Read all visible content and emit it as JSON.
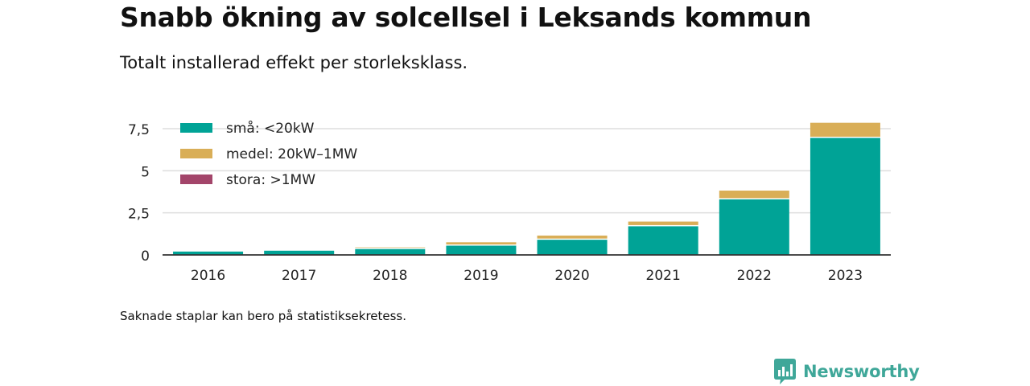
{
  "header": {
    "title": "Snabb ökning av solcellsel i Leksands kommun",
    "subtitle": "Totalt installerad effekt per storleksklass."
  },
  "footer": {
    "note": "Saknade staplar kan bero på statistiksekretess.",
    "brand": "Newsworthy"
  },
  "colors": {
    "small": "#00a396",
    "medium": "#d9ae57",
    "large": "#a3456a",
    "grid": "#dddddd",
    "axis": "#333333",
    "brand": "#3fa799"
  },
  "brand_icon": "newsworthy-bar-chart-icon",
  "chart_data": {
    "type": "bar",
    "stacked": true,
    "categories": [
      "2016",
      "2017",
      "2018",
      "2019",
      "2020",
      "2021",
      "2022",
      "2023"
    ],
    "series": [
      {
        "name": "små: <20kW",
        "color": "#00a396",
        "values": [
          0.2,
          0.25,
          0.35,
          0.55,
          0.9,
          1.7,
          3.3,
          6.95
        ]
      },
      {
        "name": "medel: 20kW–1MW",
        "color": "#d9ae57",
        "values": [
          0.0,
          0.0,
          0.1,
          0.2,
          0.25,
          0.28,
          0.52,
          0.9
        ]
      },
      {
        "name": "stora: >1MW",
        "color": "#a3456a",
        "values": [
          0,
          0,
          0,
          0,
          0,
          0,
          0,
          0
        ]
      }
    ],
    "yticks": [
      0,
      2.5,
      5,
      7.5
    ],
    "ytick_labels": [
      "0",
      "2,5",
      "5",
      "7,5"
    ],
    "ylim": [
      0,
      7.6
    ],
    "grid": true,
    "legend_position": "top-left",
    "xlabel": "",
    "ylabel": ""
  }
}
